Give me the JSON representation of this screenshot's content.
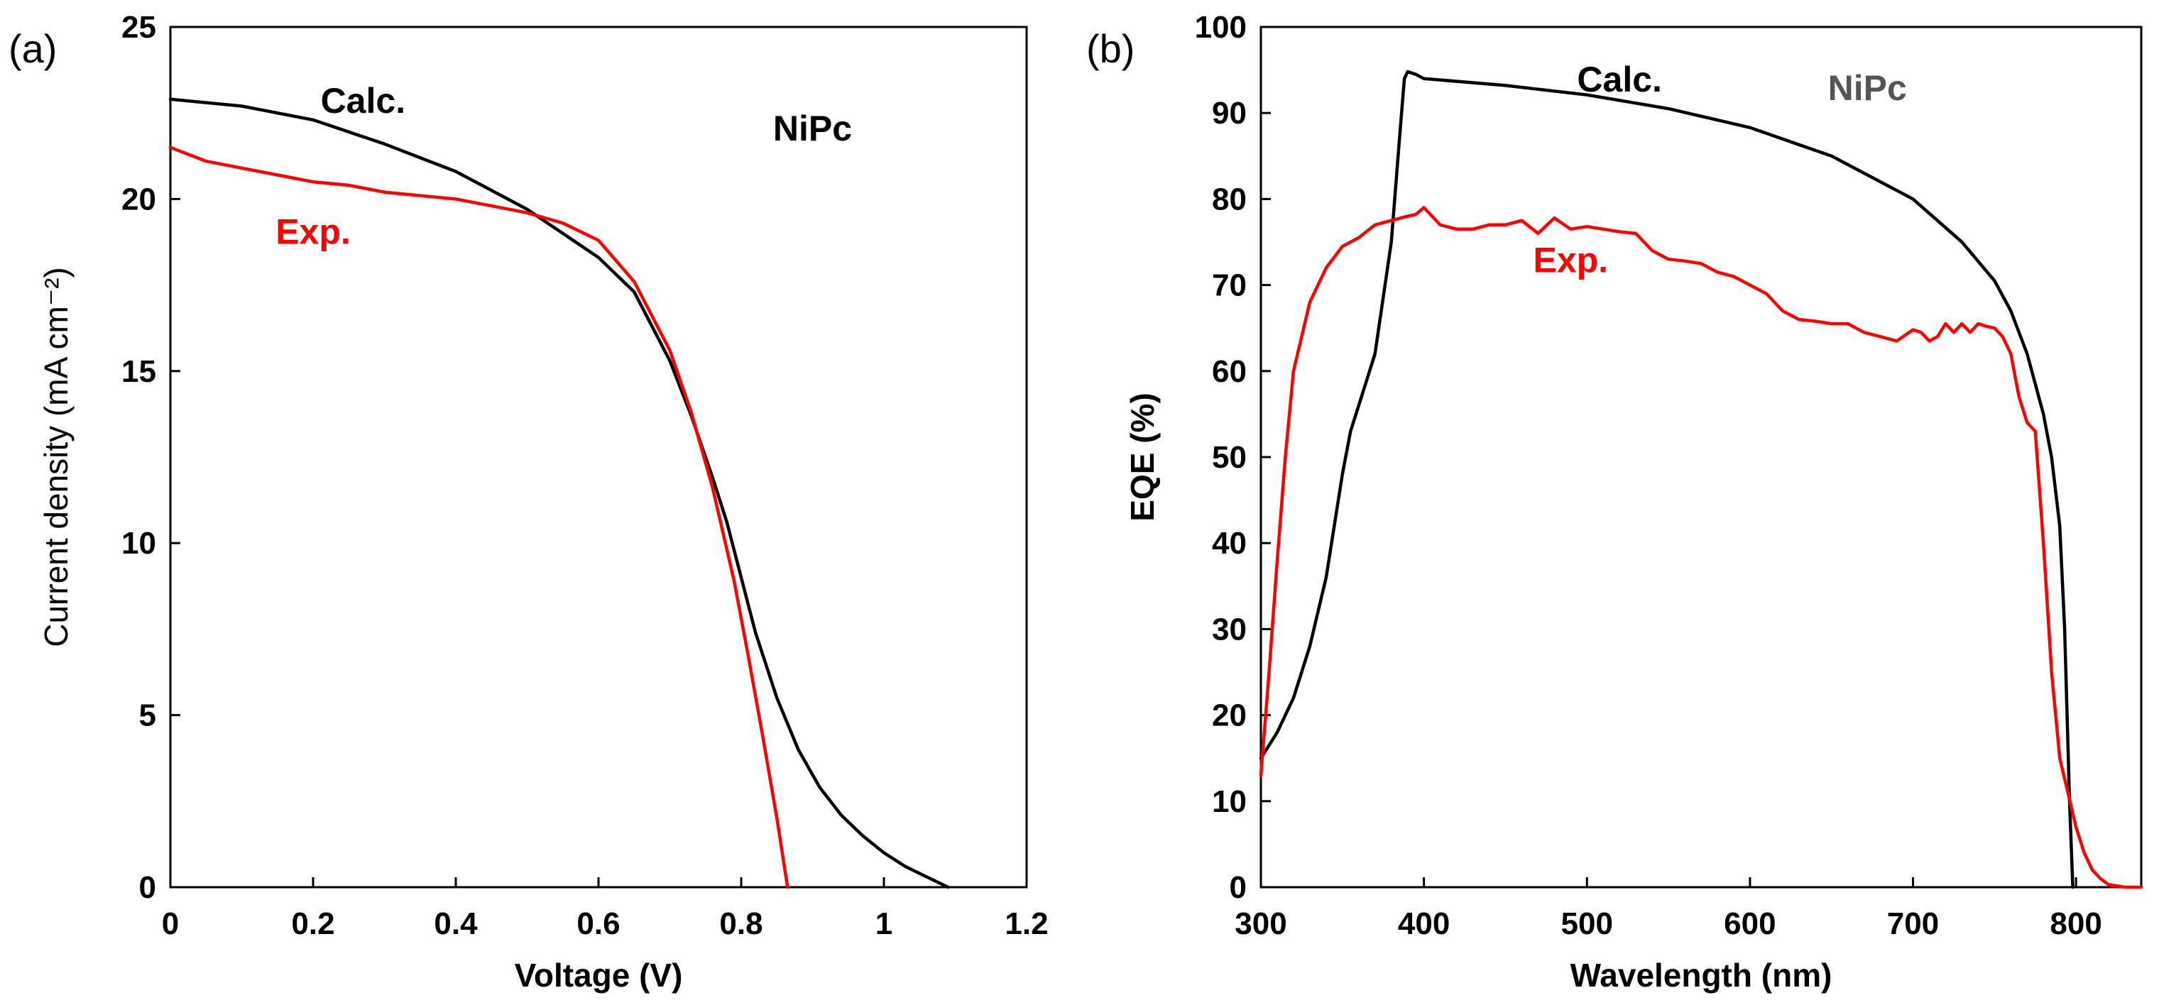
{
  "chart_data": [
    {
      "type": "line",
      "panel_label": "(a)",
      "title": "",
      "xlabel": "Voltage (V)",
      "ylabel": "Current density (mA cm⁻²)",
      "xlim": [
        0,
        1.2
      ],
      "ylim": [
        0,
        25
      ],
      "xticks": [
        0,
        0.2,
        0.4,
        0.6,
        0.8,
        1.0,
        1.2
      ],
      "xtick_labels": [
        "0",
        "0.2",
        "0.4",
        "0.6",
        "0.8",
        "1",
        "1.2"
      ],
      "yticks": [
        0,
        5,
        10,
        15,
        20,
        25
      ],
      "ytick_labels": [
        "0",
        "5",
        "10",
        "15",
        "20",
        "25"
      ],
      "grid": false,
      "series": [
        {
          "name": "Calc.",
          "color": "#000000",
          "x": [
            0,
            0.1,
            0.2,
            0.3,
            0.4,
            0.5,
            0.55,
            0.6,
            0.65,
            0.7,
            0.73,
            0.76,
            0.78,
            0.8,
            0.82,
            0.85,
            0.88,
            0.91,
            0.94,
            0.97,
            1.0,
            1.03,
            1.06,
            1.09
          ],
          "y": [
            22.9,
            22.7,
            22.3,
            21.6,
            20.8,
            19.7,
            19.0,
            18.3,
            17.3,
            15.3,
            13.7,
            11.9,
            10.6,
            9.0,
            7.4,
            5.5,
            4.0,
            2.9,
            2.1,
            1.5,
            1.0,
            0.6,
            0.3,
            0.0
          ]
        },
        {
          "name": "Exp.",
          "color": "#ff0000",
          "x": [
            0,
            0.05,
            0.1,
            0.15,
            0.2,
            0.25,
            0.3,
            0.35,
            0.4,
            0.45,
            0.5,
            0.55,
            0.6,
            0.65,
            0.7,
            0.73,
            0.76,
            0.79,
            0.81,
            0.83,
            0.85,
            0.865
          ],
          "y": [
            21.5,
            21.1,
            20.9,
            20.7,
            20.5,
            20.4,
            20.2,
            20.1,
            20.0,
            19.8,
            19.6,
            19.3,
            18.8,
            17.6,
            15.6,
            13.8,
            11.6,
            8.9,
            6.7,
            4.4,
            2.0,
            0.0
          ]
        }
      ],
      "annotations": [
        {
          "text": "Calc.",
          "x": 0.27,
          "y": 22.5,
          "color": "#000000"
        },
        {
          "text": "Exp.",
          "x": 0.2,
          "y": 18.7,
          "color": "#ff0000"
        },
        {
          "text": "NiPc",
          "x": 0.9,
          "y": 21.7,
          "color": "#000000"
        }
      ]
    },
    {
      "type": "line",
      "panel_label": "(b)",
      "title": "",
      "xlabel": "Wavelength (nm)",
      "ylabel": "EQE (%)",
      "xlim": [
        300,
        840
      ],
      "ylim": [
        0,
        100
      ],
      "xticks": [
        300,
        400,
        500,
        600,
        700,
        800
      ],
      "xtick_labels": [
        "300",
        "400",
        "500",
        "600",
        "700",
        "800"
      ],
      "yticks": [
        0,
        10,
        20,
        30,
        40,
        50,
        60,
        70,
        80,
        90,
        100
      ],
      "ytick_labels": [
        "0",
        "10",
        "20",
        "30",
        "40",
        "50",
        "60",
        "70",
        "80",
        "90",
        "100"
      ],
      "grid": false,
      "series": [
        {
          "name": "Calc.",
          "color": "#000000",
          "x": [
            300,
            310,
            320,
            330,
            340,
            350,
            355,
            360,
            370,
            380,
            385,
            388,
            390,
            395,
            400,
            450,
            500,
            550,
            600,
            650,
            700,
            730,
            750,
            760,
            770,
            780,
            785,
            790,
            793,
            796,
            798
          ],
          "y": [
            15,
            18,
            22,
            28,
            36,
            48,
            53,
            56,
            62,
            75,
            87,
            94,
            94.8,
            94.5,
            94.0,
            93.2,
            92.1,
            90.5,
            88.3,
            85.0,
            80.0,
            75.0,
            70.5,
            67.0,
            62.0,
            55.0,
            50.0,
            42.0,
            30.0,
            10.0,
            0.0
          ]
        },
        {
          "name": "Exp.",
          "color": "#ff0000",
          "x": [
            300,
            305,
            310,
            315,
            320,
            330,
            340,
            350,
            360,
            370,
            380,
            390,
            395,
            400,
            405,
            410,
            420,
            430,
            440,
            450,
            460,
            470,
            480,
            490,
            500,
            510,
            520,
            530,
            540,
            550,
            560,
            570,
            580,
            590,
            600,
            610,
            620,
            630,
            640,
            650,
            660,
            670,
            680,
            690,
            700,
            705,
            710,
            715,
            720,
            725,
            730,
            735,
            740,
            745,
            750,
            755,
            760,
            765,
            770,
            775,
            780,
            785,
            790,
            795,
            800,
            805,
            810,
            815,
            820,
            830,
            840
          ],
          "y": [
            13,
            25,
            38,
            50,
            60,
            68,
            72,
            74.5,
            75.5,
            77,
            77.5,
            78,
            78.2,
            79,
            78,
            77,
            76.5,
            76.5,
            77,
            77,
            77.5,
            76,
            77.8,
            76.5,
            76.8,
            76.5,
            76.2,
            76,
            74,
            73,
            72.8,
            72.5,
            71.5,
            71,
            70,
            69,
            67,
            66,
            65.8,
            65.5,
            65.5,
            64.5,
            64,
            63.5,
            64.8,
            64.5,
            63.5,
            64,
            65.5,
            64.5,
            65.5,
            64.5,
            65.5,
            65.2,
            65,
            64,
            62,
            57,
            54,
            53,
            40,
            25,
            15,
            11,
            7,
            4,
            2,
            1,
            0.3,
            0,
            0
          ]
        }
      ],
      "annotations": [
        {
          "text": "Calc.",
          "x": 520,
          "y": 92.5,
          "color": "#000000"
        },
        {
          "text": "Exp.",
          "x": 490,
          "y": 71.5,
          "color": "#ff0000"
        },
        {
          "text": "NiPc",
          "x": 672,
          "y": 91.5,
          "color": "#555555"
        }
      ]
    }
  ]
}
